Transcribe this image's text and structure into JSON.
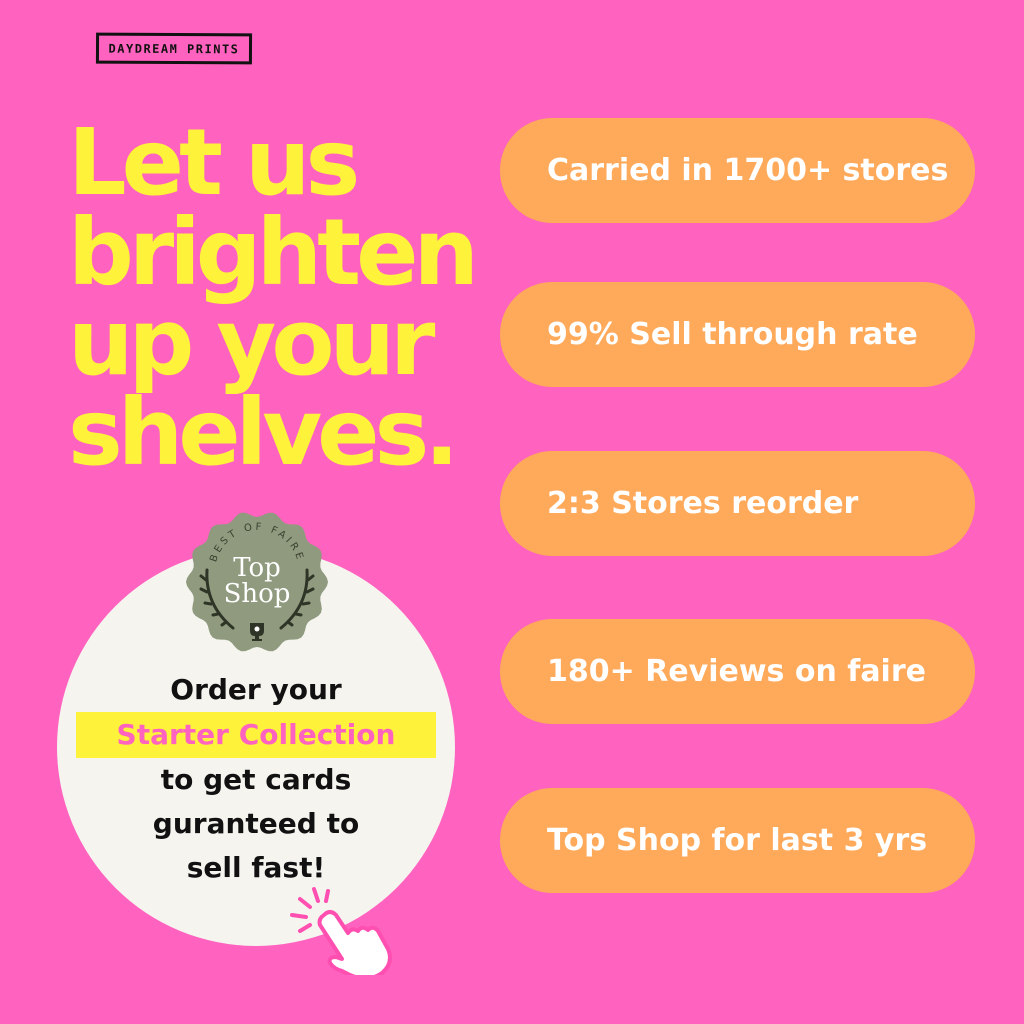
{
  "brand": {
    "logo_text": "DAYDREAM PRINTS"
  },
  "headline": {
    "lines": [
      "Let us",
      "brighten",
      "up your",
      "shelves."
    ]
  },
  "badge": {
    "arc_text": "BEST OF FAIRE",
    "title_line1": "Top",
    "title_line2": "Shop",
    "icon": "trophy-icon"
  },
  "cta": {
    "line1": "Order your",
    "highlight": "Starter Collection",
    "line2": "to get cards",
    "line3": "guranteed to",
    "line4": "sell fast!",
    "icon": "pointing-hand-click-icon"
  },
  "stats": [
    "Carried in 1700+ stores",
    "99% Sell through rate",
    "2:3 Stores reorder",
    "180+ Reviews on faire",
    "Top Shop for last 3 yrs"
  ],
  "colors": {
    "background": "#FF62BF",
    "headline": "#FFF23A",
    "pill": "#FFA95A",
    "badge": "#8F9A7E",
    "circle": "#F5F4EF"
  }
}
